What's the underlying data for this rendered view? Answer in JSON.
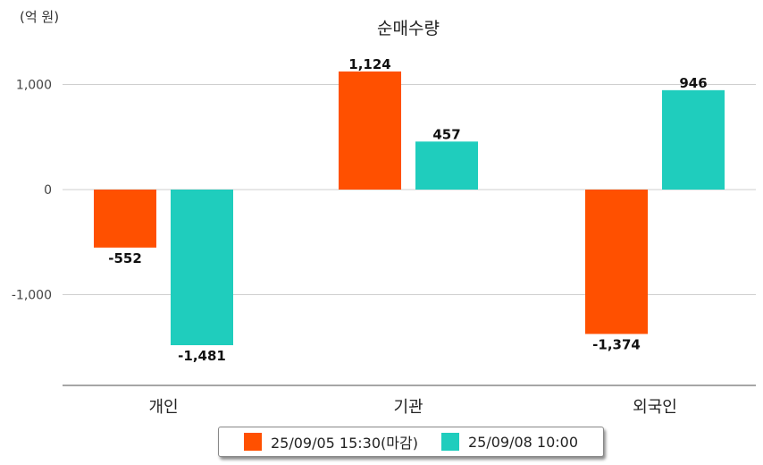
{
  "unit_label": "(억 원)",
  "chart_data": {
    "type": "bar",
    "title": "순매수량",
    "categories": [
      "개인",
      "기관",
      "외국인"
    ],
    "series": [
      {
        "name": "25/09/05 15:30(마감)",
        "values": [
          -552,
          1124,
          -1374
        ],
        "labels": [
          "-552",
          "1,124",
          "-1,374"
        ],
        "color": "#ff5000"
      },
      {
        "name": "25/09/08 10:00",
        "values": [
          -1481,
          457,
          946
        ],
        "labels": [
          "-1,481",
          "457",
          "946"
        ],
        "color": "#1fcdbd"
      }
    ],
    "ylim": [
      -1850,
      1000
    ],
    "yticks": [
      1000,
      0,
      -1000
    ],
    "ytick_labels": [
      "1,000",
      "0",
      "-1,000"
    ],
    "grid": true,
    "legend": "bottom"
  }
}
